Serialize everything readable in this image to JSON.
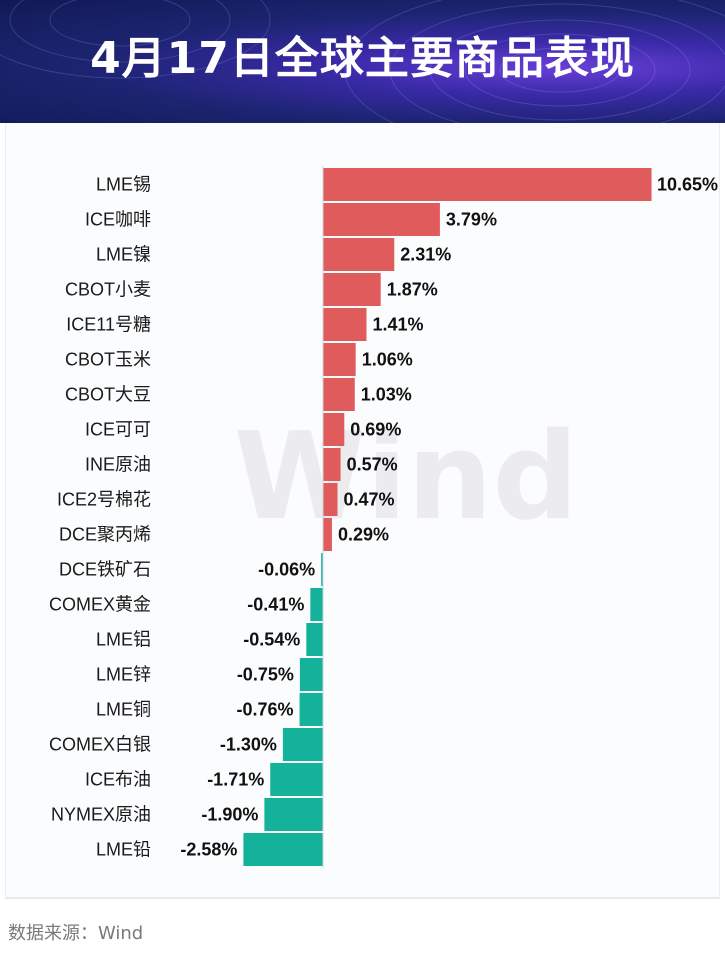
{
  "banner": {
    "title": "4月17日全球主要商品表现"
  },
  "watermark": "Wind",
  "source": "数据来源：Wind",
  "colors": {
    "positive": "#e05c5c",
    "negative": "#14b29a"
  },
  "chart_data": {
    "type": "bar",
    "orientation": "horizontal",
    "title": "4月17日全球主要商品表现",
    "categories": [
      "LME锡",
      "ICE咖啡",
      "LME镍",
      "CBOT小麦",
      "ICE11号糖",
      "CBOT玉米",
      "CBOT大豆",
      "ICE可可",
      "INE原油",
      "ICE2号棉花",
      "DCE聚丙烯",
      "DCE铁矿石",
      "COMEX黄金",
      "LME铝",
      "LME锌",
      "LME铜",
      "COMEX白银",
      "ICE布油",
      "NYMEX原油",
      "LME铅"
    ],
    "values": [
      10.65,
      3.79,
      2.31,
      1.87,
      1.41,
      1.06,
      1.03,
      0.69,
      0.57,
      0.47,
      0.29,
      -0.06,
      -0.41,
      -0.54,
      -0.75,
      -0.76,
      -1.3,
      -1.71,
      -1.9,
      -2.58
    ],
    "value_labels": [
      "10.65%",
      "3.79%",
      "2.31%",
      "1.87%",
      "1.41%",
      "1.06%",
      "1.03%",
      "0.69%",
      "0.57%",
      "0.47%",
      "0.29%",
      "-0.06%",
      "-0.41%",
      "-0.54%",
      "-0.75%",
      "-0.76%",
      "-1.30%",
      "-1.71%",
      "-1.90%",
      "-2.58%"
    ],
    "unit": "%",
    "xlabel": "",
    "ylabel": ""
  }
}
